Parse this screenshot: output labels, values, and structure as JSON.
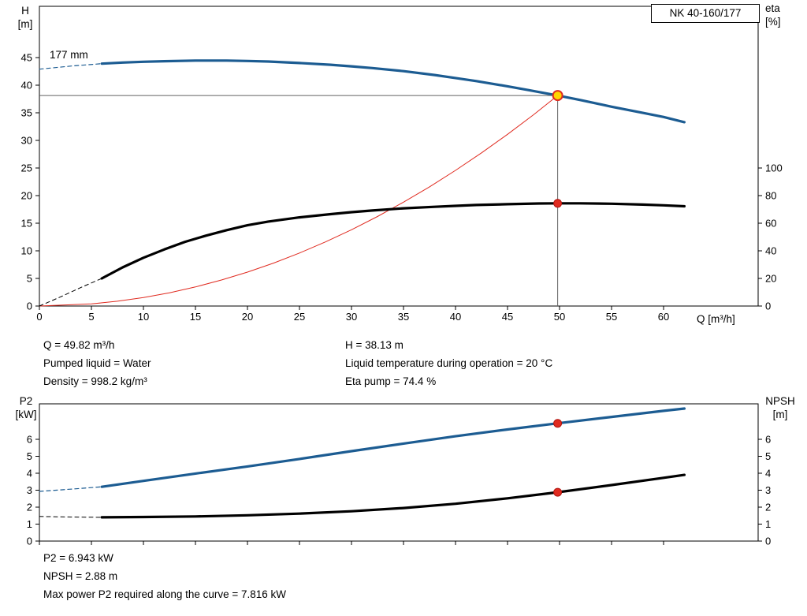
{
  "pump_model": "NK 40-160/177",
  "impeller_diameter_label": "177 mm",
  "info": {
    "q_line": "Q = 49.82 m³/h",
    "h_line": "H = 38.13 m",
    "liquid_line": "Pumped liquid = Water",
    "temperature_line": "Liquid temperature during operation = 20 °C",
    "density_line": "Density = 998.2 kg/m³",
    "eta_line": "Eta pump = 74.4 %",
    "p2_line": "P2 = 6.943 kW",
    "npsh_line": "NPSH = 2.88 m",
    "max_p2_line": "Max power P2 required along the curve = 7.816 kW"
  },
  "chart_data": [
    {
      "name": "qh-eta-chart",
      "type": "line",
      "x_axis": {
        "label": "Q [m³/h]",
        "ticks": [
          0,
          5,
          10,
          15,
          20,
          25,
          30,
          35,
          40,
          45,
          50,
          55,
          60
        ],
        "tick_labels": true,
        "range": [
          0,
          69
        ]
      },
      "left_axis": {
        "name": "H",
        "unit": "[m]",
        "ticks": [
          0,
          5,
          10,
          15,
          20,
          25,
          30,
          35,
          40,
          45
        ],
        "range": [
          0,
          54.3
        ]
      },
      "right_axis": {
        "name": "eta",
        "unit": "[%]",
        "ticks": [
          0,
          20,
          40,
          60,
          80,
          100
        ],
        "range": [
          0,
          217
        ]
      },
      "duty_point": {
        "q": 49.82,
        "h": 38.13,
        "eta": 74.4
      },
      "crosshair": {
        "q": 49.82,
        "h": 38.13,
        "color": "#616161"
      },
      "series": [
        {
          "name": "head-curve-dashed",
          "axis": "left",
          "color": "#1c5c92",
          "width": 1.2,
          "dashed": true,
          "points": [
            [
              0,
              42.9
            ],
            [
              3,
              43.45
            ],
            [
              6,
              43.9
            ]
          ]
        },
        {
          "name": "affinity-curve",
          "axis": "left",
          "color": "#e02b20",
          "width": 1,
          "dashed": false,
          "points": [
            [
              0,
              0
            ],
            [
              5,
              0.38
            ],
            [
              7.5,
              0.87
            ],
            [
              10,
              1.54
            ],
            [
              12.5,
              2.4
            ],
            [
              15,
              3.46
            ],
            [
              17.5,
              4.71
            ],
            [
              20,
              6.14
            ],
            [
              22.5,
              7.77
            ],
            [
              25,
              9.6
            ],
            [
              27.5,
              11.61
            ],
            [
              30,
              13.82
            ],
            [
              32.5,
              16.22
            ],
            [
              35,
              18.81
            ],
            [
              37.5,
              21.59
            ],
            [
              40,
              24.57
            ],
            [
              42.5,
              27.74
            ],
            [
              45,
              31.1
            ],
            [
              47.5,
              34.65
            ],
            [
              49.82,
              38.13
            ]
          ]
        },
        {
          "name": "eta-curve-dashed",
          "axis": "right",
          "color": "#000000",
          "width": 1,
          "dashed": true,
          "points": [
            [
              0,
              0
            ],
            [
              2,
              6.5
            ],
            [
              4,
              13.5
            ],
            [
              6,
              20
            ]
          ]
        },
        {
          "name": "eta-curve",
          "axis": "right",
          "color": "#000000",
          "width": 3.2,
          "dashed": false,
          "points": [
            [
              6,
              20
            ],
            [
              8,
              28
            ],
            [
              10,
              35
            ],
            [
              12,
              41
            ],
            [
              14,
              46.5
            ],
            [
              16,
              51
            ],
            [
              18,
              55
            ],
            [
              20,
              58.5
            ],
            [
              22,
              61.2
            ],
            [
              25,
              64.2
            ],
            [
              28,
              66.6
            ],
            [
              30,
              68
            ],
            [
              32,
              69.2
            ],
            [
              35,
              70.8
            ],
            [
              38,
              71.9
            ],
            [
              40,
              72.6
            ],
            [
              42,
              73.2
            ],
            [
              45,
              73.8
            ],
            [
              48,
              74.3
            ],
            [
              50,
              74.4
            ],
            [
              52,
              74.4
            ],
            [
              55,
              74.1
            ],
            [
              58,
              73.5
            ],
            [
              60,
              73
            ],
            [
              62,
              72.3
            ]
          ]
        },
        {
          "name": "head-curve",
          "axis": "left",
          "color": "#1c5c92",
          "width": 3.2,
          "dashed": false,
          "points": [
            [
              6,
              43.9
            ],
            [
              8,
              44.1
            ],
            [
              10,
              44.25
            ],
            [
              12,
              44.35
            ],
            [
              15,
              44.45
            ],
            [
              18,
              44.45
            ],
            [
              20,
              44.38
            ],
            [
              22,
              44.28
            ],
            [
              25,
              44.02
            ],
            [
              28,
              43.7
            ],
            [
              30,
              43.42
            ],
            [
              32,
              43.1
            ],
            [
              35,
              42.55
            ],
            [
              38,
              41.85
            ],
            [
              40,
              41.3
            ],
            [
              42,
              40.75
            ],
            [
              45,
              39.8
            ],
            [
              47,
              39.12
            ],
            [
              49.82,
              38.13
            ],
            [
              52,
              37.32
            ],
            [
              55,
              36.1
            ],
            [
              58,
              34.98
            ],
            [
              60,
              34.25
            ],
            [
              62,
              33.3
            ]
          ]
        }
      ],
      "markers": [
        {
          "name": "duty-point-marker",
          "axis": "left",
          "q": 49.82,
          "value": 38.13,
          "r": 6,
          "fill": "#ffd500",
          "stroke": "#e02b20",
          "stroke_width": 2,
          "interactable": true
        },
        {
          "name": "eta-point-marker",
          "axis": "right",
          "q": 49.82,
          "value": 74.4,
          "r": 5,
          "fill": "#e02b20",
          "stroke": "#b01510",
          "stroke_width": 1,
          "interactable": false
        }
      ]
    },
    {
      "name": "p2-npsh-chart",
      "type": "line",
      "x_axis": {
        "label": "",
        "ticks": [
          0,
          5,
          10,
          15,
          20,
          25,
          30,
          35,
          40,
          45,
          50,
          55,
          60
        ],
        "tick_labels": false,
        "range": [
          0,
          69
        ]
      },
      "left_axis": {
        "name": "P2",
        "unit": "[kW]",
        "ticks": [
          0,
          1,
          2,
          3,
          4,
          5,
          6
        ],
        "range": [
          0,
          8.1
        ]
      },
      "right_axis": {
        "name": "NPSH",
        "unit": "[m]",
        "ticks": [
          0,
          1,
          2,
          3,
          4,
          5,
          6
        ],
        "range": [
          0,
          8.1
        ]
      },
      "series": [
        {
          "name": "p2-curve-dashed",
          "axis": "left",
          "color": "#1c5c92",
          "width": 1.2,
          "dashed": true,
          "points": [
            [
              0,
              2.93
            ],
            [
              3,
              3.06
            ],
            [
              6,
              3.2
            ]
          ]
        },
        {
          "name": "p2-curve",
          "axis": "left",
          "color": "#1c5c92",
          "width": 3.2,
          "dashed": false,
          "points": [
            [
              6,
              3.2
            ],
            [
              10,
              3.55
            ],
            [
              15,
              3.98
            ],
            [
              20,
              4.4
            ],
            [
              25,
              4.84
            ],
            [
              30,
              5.3
            ],
            [
              35,
              5.75
            ],
            [
              40,
              6.18
            ],
            [
              45,
              6.58
            ],
            [
              49.82,
              6.943
            ],
            [
              55,
              7.32
            ],
            [
              60,
              7.68
            ],
            [
              62,
              7.816
            ]
          ]
        },
        {
          "name": "npsh-curve-dashed",
          "axis": "right",
          "color": "#000000",
          "width": 1,
          "dashed": true,
          "points": [
            [
              0,
              1.45
            ],
            [
              3,
              1.42
            ],
            [
              6,
              1.4
            ]
          ]
        },
        {
          "name": "npsh-curve",
          "axis": "right",
          "color": "#000000",
          "width": 3.2,
          "dashed": false,
          "points": [
            [
              6,
              1.4
            ],
            [
              10,
              1.42
            ],
            [
              15,
              1.45
            ],
            [
              20,
              1.52
            ],
            [
              25,
              1.62
            ],
            [
              30,
              1.76
            ],
            [
              35,
              1.95
            ],
            [
              40,
              2.2
            ],
            [
              45,
              2.52
            ],
            [
              49.82,
              2.88
            ],
            [
              55,
              3.3
            ],
            [
              60,
              3.73
            ],
            [
              62,
              3.9
            ]
          ]
        }
      ],
      "markers": [
        {
          "name": "p2-point-marker",
          "axis": "left",
          "q": 49.82,
          "value": 6.943,
          "r": 5,
          "fill": "#e02b20",
          "stroke": "#b01510",
          "stroke_width": 1,
          "interactable": false
        },
        {
          "name": "npsh-point-marker",
          "axis": "right",
          "q": 49.82,
          "value": 2.88,
          "r": 5,
          "fill": "#e02b20",
          "stroke": "#b01510",
          "stroke_width": 1,
          "interactable": false
        }
      ]
    }
  ]
}
